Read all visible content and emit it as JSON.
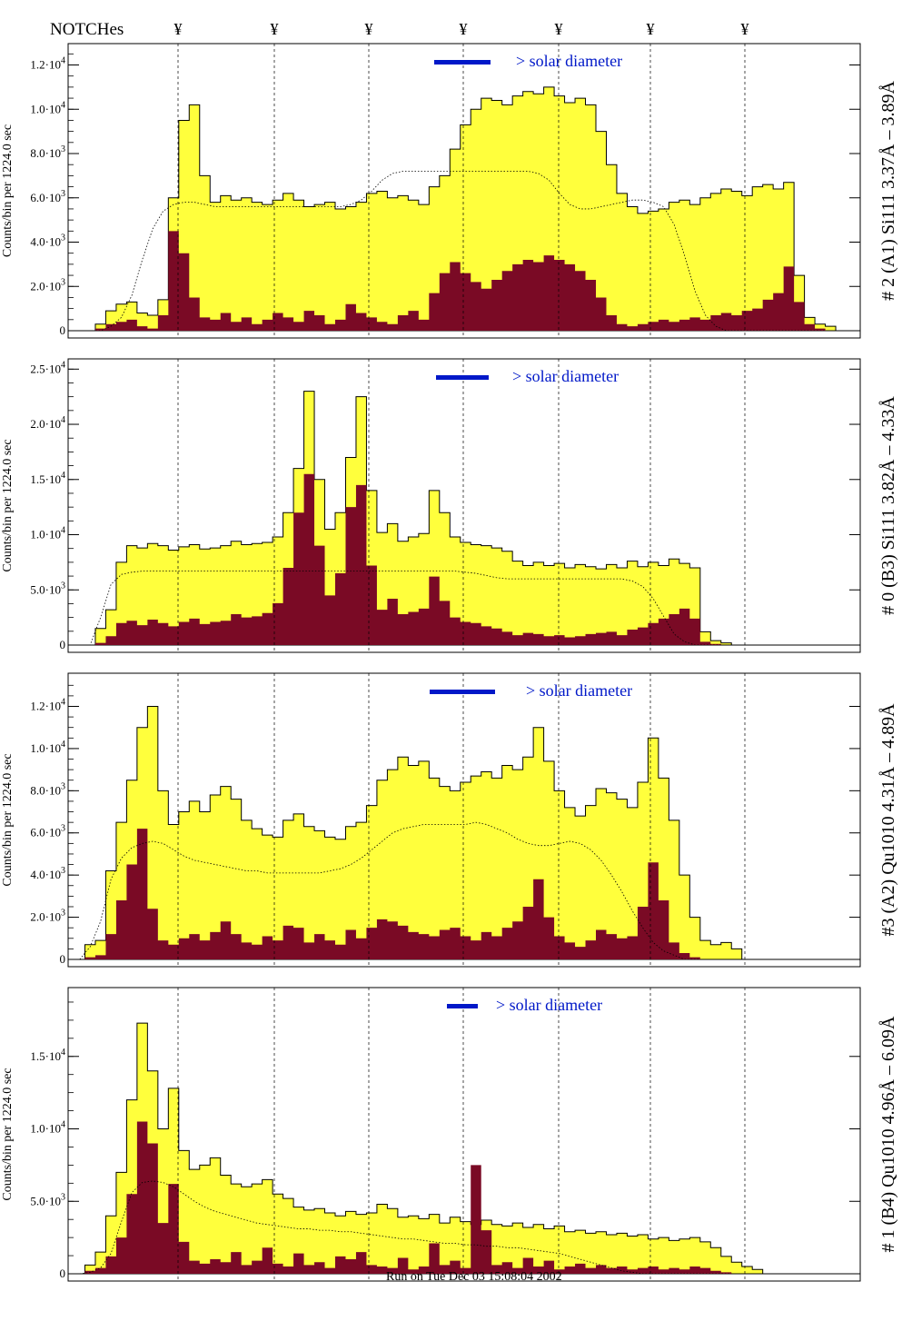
{
  "notches": {
    "label": "NOTCHes",
    "symbol": "¥",
    "positions": [
      0.18,
      0.3,
      0.42,
      0.54,
      0.66,
      0.78,
      0.9
    ]
  },
  "colors": {
    "total_fill": "#ffff3c",
    "sub_fill": "#7a0a25",
    "outline": "#000000",
    "legend_blue": "#0018c8",
    "annotation_dark": "#202020"
  },
  "footer_text": "Run on Tue Dec 03 15:08:04 2002",
  "chart_data": [
    {
      "type": "area",
      "title": "# 2 (A1) Si111  3.37Å – 3.89Å",
      "ylabel": "Counts/bin per   1224.0 sec",
      "legend_text": "> solar diameter",
      "ylim": [
        0,
        12800
      ],
      "ytick_labels": [
        "0",
        "2.0*10^3",
        "4.0*10^3",
        "6.0*10^3",
        "8.0*10^3",
        "1.0*10^4",
        "1.2*10^4"
      ],
      "ytick_values": [
        0,
        2000,
        4000,
        6000,
        8000,
        10000,
        12000
      ],
      "series": [
        {
          "name": "total",
          "values": [
            0,
            0,
            300,
            900,
            1200,
            1300,
            800,
            700,
            1400,
            6000,
            9500,
            10200,
            7000,
            5800,
            6100,
            5900,
            6000,
            5800,
            5700,
            5900,
            6200,
            5900,
            5600,
            5700,
            5800,
            5500,
            5600,
            5800,
            6200,
            6300,
            6000,
            6100,
            5900,
            5700,
            6500,
            7000,
            8200,
            9300,
            10000,
            10500,
            10400,
            10200,
            10600,
            10800,
            10700,
            11000,
            10600,
            10300,
            10500,
            10200,
            9000,
            7500,
            6200,
            5600,
            5300,
            5400,
            5500,
            5800,
            5900,
            5700,
            6000,
            6200,
            6400,
            6300,
            6100,
            6500,
            6600,
            6400,
            6700,
            2500,
            600,
            300,
            200,
            0,
            0
          ]
        },
        {
          "name": "bright",
          "values": [
            0,
            0,
            100,
            300,
            400,
            500,
            200,
            100,
            700,
            4500,
            3500,
            1500,
            600,
            500,
            800,
            400,
            600,
            300,
            500,
            800,
            600,
            400,
            900,
            700,
            300,
            500,
            1200,
            800,
            600,
            400,
            300,
            700,
            900,
            500,
            1700,
            2600,
            3100,
            2600,
            2200,
            1900,
            2300,
            2700,
            3000,
            3200,
            3100,
            3400,
            3200,
            3000,
            2700,
            2300,
            1500,
            700,
            300,
            200,
            300,
            400,
            500,
            400,
            500,
            600,
            500,
            700,
            800,
            700,
            900,
            1000,
            1400,
            1700,
            2900,
            1300,
            300,
            100,
            0,
            0,
            0
          ]
        },
        {
          "name": "model",
          "values": [
            0,
            0,
            0,
            200,
            600,
            1600,
            3200,
            4600,
            5400,
            5700,
            5800,
            5800,
            5700,
            5600,
            5600,
            5600,
            5600,
            5600,
            5600,
            5600,
            5600,
            5600,
            5600,
            5600,
            5600,
            5600,
            5700,
            5900,
            6300,
            6800,
            7100,
            7200,
            7200,
            7200,
            7200,
            7200,
            7200,
            7200,
            7200,
            7200,
            7200,
            7200,
            7200,
            7200,
            7100,
            6800,
            6200,
            5700,
            5500,
            5500,
            5600,
            5700,
            5800,
            5900,
            5900,
            5800,
            5600,
            4800,
            3400,
            1800,
            700,
            200,
            0,
            0,
            0,
            0,
            0,
            0,
            0,
            0,
            0,
            0,
            0,
            0,
            0
          ]
        }
      ]
    },
    {
      "type": "area",
      "title": "# 0 (B3) Si111  3.82Å – 4.33Å",
      "ylabel": "Counts/bin per   1224.0 sec",
      "legend_text": "> solar diameter",
      "ylim": [
        0,
        25600
      ],
      "ytick_labels": [
        "0",
        "5.0*10^3",
        "1.0*10^4",
        "1.5*10^4",
        "2.0*10^4",
        "2.5*10^4"
      ],
      "ytick_values": [
        0,
        5000,
        10000,
        15000,
        20000,
        25000
      ],
      "series": [
        {
          "name": "total",
          "values": [
            0,
            0,
            1500,
            3200,
            7500,
            9000,
            8800,
            9200,
            9000,
            8600,
            8900,
            9100,
            8700,
            8800,
            9000,
            9400,
            9100,
            9200,
            9300,
            9800,
            12000,
            16000,
            23000,
            15000,
            10500,
            12000,
            17000,
            22500,
            14000,
            10200,
            11000,
            9400,
            9800,
            10100,
            14000,
            12000,
            9800,
            9300,
            9100,
            9000,
            8800,
            8500,
            7600,
            7200,
            7500,
            7200,
            7400,
            7000,
            7300,
            7100,
            6900,
            7300,
            7000,
            7600,
            7100,
            7500,
            7200,
            7800,
            7400,
            7000,
            1200,
            400,
            200,
            0,
            0,
            0,
            0,
            0,
            0,
            0,
            0,
            0,
            0,
            0,
            0
          ]
        },
        {
          "name": "bright",
          "values": [
            0,
            0,
            200,
            800,
            2000,
            2200,
            1800,
            2300,
            2000,
            1700,
            2100,
            2400,
            1900,
            2100,
            2200,
            2800,
            2500,
            2600,
            2900,
            3800,
            7000,
            12000,
            15500,
            9000,
            4500,
            6500,
            12500,
            14500,
            7200,
            3200,
            4200,
            2800,
            3000,
            3300,
            6200,
            4000,
            2500,
            2100,
            2000,
            1700,
            1500,
            1200,
            900,
            1100,
            1000,
            800,
            900,
            700,
            800,
            1000,
            1100,
            1200,
            900,
            1400,
            1600,
            2000,
            2400,
            2800,
            3300,
            2400,
            300,
            100,
            0,
            0,
            0,
            0,
            0,
            0,
            0,
            0,
            0,
            0,
            0,
            0,
            0
          ]
        },
        {
          "name": "model",
          "values": [
            0,
            0,
            2500,
            5500,
            6400,
            6600,
            6700,
            6700,
            6700,
            6700,
            6700,
            6700,
            6700,
            6700,
            6700,
            6700,
            6700,
            6700,
            6700,
            6700,
            6700,
            6700,
            6700,
            6700,
            6700,
            6700,
            6700,
            6700,
            6700,
            6700,
            6700,
            6700,
            6700,
            6700,
            6700,
            6700,
            6700,
            6600,
            6500,
            6300,
            6100,
            6000,
            6000,
            6000,
            6000,
            6000,
            6000,
            6000,
            6000,
            6000,
            6000,
            6000,
            6000,
            5800,
            5300,
            4200,
            2600,
            1000,
            300,
            0,
            0,
            0,
            0,
            0,
            0,
            0,
            0,
            0,
            0,
            0,
            0,
            0,
            0,
            0,
            0
          ]
        }
      ]
    },
    {
      "type": "area",
      "title": "#3 (A2) Qu1010  4.31Å – 4.89Å",
      "ylabel": "Counts/bin per   1224.0 sec",
      "legend_text": "> solar diameter",
      "ylim": [
        0,
        13400
      ],
      "ytick_labels": [
        "0",
        "2.0*10^3",
        "4.0*10^3",
        "6.0*10^3",
        "8.0*10^3",
        "1.0*10^4",
        "1.2*10^4"
      ],
      "ytick_values": [
        0,
        2000,
        4000,
        6000,
        8000,
        10000,
        12000
      ],
      "series": [
        {
          "name": "total",
          "values": [
            0,
            700,
            900,
            4200,
            6500,
            8500,
            11000,
            12000,
            8000,
            6400,
            7000,
            7500,
            7000,
            7800,
            8200,
            7600,
            6600,
            6200,
            5900,
            5800,
            6600,
            6900,
            6300,
            6100,
            5800,
            5700,
            6300,
            6500,
            7300,
            8500,
            9000,
            9600,
            9200,
            9400,
            8600,
            8200,
            8000,
            8400,
            8700,
            8900,
            8600,
            9200,
            9000,
            9600,
            11000,
            9400,
            8000,
            7200,
            6800,
            7300,
            8100,
            7900,
            7600,
            7200,
            8400,
            10500,
            8600,
            6600,
            4000,
            2000,
            900,
            700,
            800,
            500,
            0,
            0,
            0,
            0,
            0,
            0,
            0,
            0,
            0,
            0,
            0
          ]
        },
        {
          "name": "bright",
          "values": [
            0,
            100,
            200,
            1200,
            2800,
            4500,
            6200,
            2400,
            900,
            700,
            1000,
            1200,
            900,
            1300,
            1800,
            1200,
            800,
            700,
            1100,
            900,
            1600,
            1500,
            800,
            1200,
            900,
            700,
            1400,
            1000,
            1500,
            1900,
            1800,
            1600,
            1300,
            1200,
            1100,
            1400,
            1500,
            1100,
            900,
            1300,
            1100,
            1500,
            1800,
            2500,
            3800,
            2000,
            1100,
            800,
            600,
            900,
            1400,
            1200,
            1000,
            1100,
            2500,
            4600,
            2800,
            800,
            300,
            100,
            0,
            0,
            0,
            0,
            0,
            0,
            0,
            0,
            0,
            0,
            0,
            0,
            0,
            0,
            0
          ]
        },
        {
          "name": "model",
          "values": [
            0,
            600,
            1800,
            3800,
            4800,
            5300,
            5500,
            5600,
            5500,
            5200,
            4900,
            4700,
            4600,
            4500,
            4400,
            4300,
            4200,
            4200,
            4100,
            4100,
            4100,
            4100,
            4100,
            4100,
            4200,
            4300,
            4500,
            4800,
            5200,
            5600,
            6000,
            6200,
            6300,
            6400,
            6400,
            6400,
            6400,
            6400,
            6500,
            6400,
            6200,
            6000,
            5700,
            5500,
            5400,
            5400,
            5500,
            5600,
            5500,
            5200,
            4700,
            4000,
            3200,
            2300,
            1500,
            800,
            400,
            200,
            0,
            0,
            0,
            0,
            0,
            0,
            0,
            0,
            0,
            0,
            0,
            0,
            0,
            0,
            0,
            0,
            0
          ]
        }
      ]
    },
    {
      "type": "area",
      "title": "# 1 (B4) Qu1010 4.96Å – 6.09Å",
      "ylabel": "Counts/bin per   1224.0 sec",
      "legend_text": "> solar diameter",
      "ylim": [
        0,
        19500
      ],
      "ytick_labels": [
        "0",
        "5.0*10^3",
        "1.0*10^4",
        "1.5*10^4"
      ],
      "ytick_values": [
        0,
        5000,
        10000,
        15000
      ],
      "series": [
        {
          "name": "total",
          "values": [
            0,
            600,
            1500,
            4000,
            7000,
            12000,
            17300,
            14000,
            10000,
            12800,
            8500,
            7200,
            7500,
            8000,
            6800,
            6200,
            6000,
            6200,
            6500,
            5500,
            5200,
            4600,
            4400,
            4500,
            4200,
            4000,
            4300,
            4100,
            4200,
            4800,
            4500,
            3900,
            4000,
            3800,
            4100,
            3500,
            3900,
            3600,
            3400,
            3700,
            3400,
            3300,
            3500,
            3200,
            3400,
            3100,
            3300,
            2900,
            3000,
            2800,
            2900,
            2700,
            2800,
            2600,
            2700,
            2400,
            2500,
            2300,
            2400,
            2500,
            2200,
            1800,
            1200,
            800,
            500,
            300,
            0,
            0,
            0,
            0,
            0,
            0,
            0,
            0,
            0
          ]
        },
        {
          "name": "bright",
          "values": [
            0,
            200,
            400,
            1200,
            2500,
            5500,
            10500,
            9000,
            3500,
            6200,
            2200,
            900,
            700,
            1000,
            800,
            1500,
            600,
            900,
            1800,
            700,
            500,
            1400,
            600,
            800,
            400,
            1200,
            1000,
            1500,
            600,
            500,
            400,
            1100,
            300,
            500,
            2100,
            600,
            900,
            400,
            7500,
            3000,
            600,
            800,
            400,
            1100,
            500,
            900,
            300,
            500,
            700,
            400,
            600,
            400,
            500,
            300,
            400,
            500,
            300,
            400,
            300,
            500,
            400,
            200,
            100,
            0,
            0,
            0,
            0,
            0,
            0,
            0,
            0,
            0,
            0,
            0,
            0
          ]
        },
        {
          "name": "model",
          "values": [
            0,
            100,
            400,
            1400,
            3600,
            5600,
            6300,
            6400,
            6300,
            6000,
            5500,
            5000,
            4600,
            4300,
            4100,
            3900,
            3700,
            3500,
            3400,
            3300,
            3200,
            3100,
            3100,
            3000,
            3000,
            2900,
            2900,
            2800,
            2700,
            2600,
            2500,
            2400,
            2400,
            2300,
            2200,
            2100,
            2100,
            2000,
            2000,
            1900,
            1900,
            1800,
            1800,
            1700,
            1600,
            1500,
            1400,
            1200,
            1000,
            800,
            600,
            400,
            200,
            100,
            0,
            0,
            0,
            0,
            0,
            0,
            0,
            0,
            0,
            0,
            0,
            0,
            0,
            0,
            0,
            0,
            0,
            0,
            0,
            0,
            0
          ]
        }
      ]
    }
  ]
}
